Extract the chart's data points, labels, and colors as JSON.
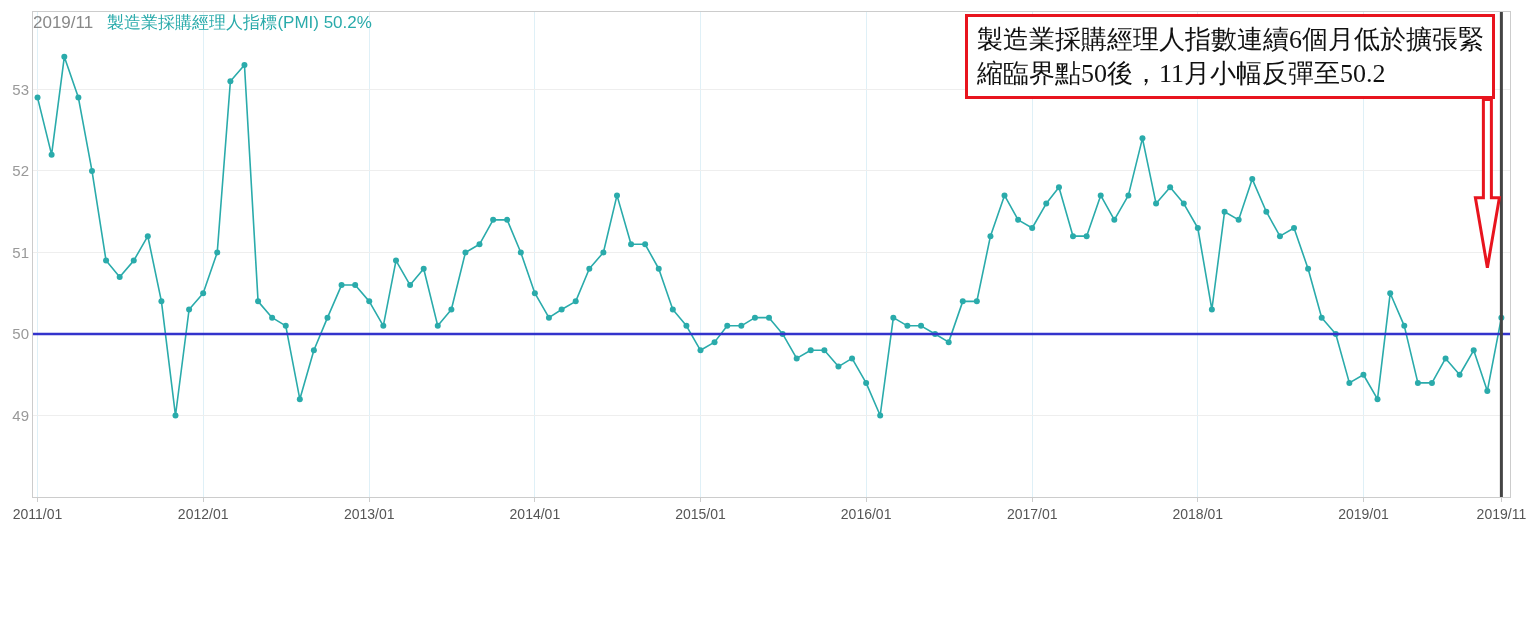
{
  "chart_data": {
    "type": "line",
    "annotations": [
      "2019/11",
      "50.2%",
      "製造業採購經理人指數連續6個月低於擴張緊縮臨界點50後，11月小幅反彈至50.2"
    ],
    "x": [
      "2011-01",
      "2011-02",
      "2011-03",
      "2011-04",
      "2011-05",
      "2011-06",
      "2011-07",
      "2011-08",
      "2011-09",
      "2011-10",
      "2011-11",
      "2011-12",
      "2012-01",
      "2012-02",
      "2012-03",
      "2012-04",
      "2012-05",
      "2012-06",
      "2012-07",
      "2012-08",
      "2012-09",
      "2012-10",
      "2012-11",
      "2012-12",
      "2013-01",
      "2013-02",
      "2013-03",
      "2013-04",
      "2013-05",
      "2013-06",
      "2013-07",
      "2013-08",
      "2013-09",
      "2013-10",
      "2013-11",
      "2013-12",
      "2014-01",
      "2014-02",
      "2014-03",
      "2014-04",
      "2014-05",
      "2014-06",
      "2014-07",
      "2014-08",
      "2014-09",
      "2014-10",
      "2014-11",
      "2014-12",
      "2015-01",
      "2015-02",
      "2015-03",
      "2015-04",
      "2015-05",
      "2015-06",
      "2015-07",
      "2015-08",
      "2015-09",
      "2015-10",
      "2015-11",
      "2015-12",
      "2016-01",
      "2016-02",
      "2016-03",
      "2016-04",
      "2016-05",
      "2016-06",
      "2016-07",
      "2016-08",
      "2016-09",
      "2016-10",
      "2016-11",
      "2016-12",
      "2017-01",
      "2017-02",
      "2017-03",
      "2017-04",
      "2017-05",
      "2017-06",
      "2017-07",
      "2017-08",
      "2017-09",
      "2017-10",
      "2017-11",
      "2017-12",
      "2018-01",
      "2018-02",
      "2018-03",
      "2018-04",
      "2018-05",
      "2018-06",
      "2018-07",
      "2018-08",
      "2018-09",
      "2018-10",
      "2018-11",
      "2018-12",
      "2019-01",
      "2019-02",
      "2019-03",
      "2019-04",
      "2019-05",
      "2019-06",
      "2019-07",
      "2019-08",
      "2019-09",
      "2019-10",
      "2019-11"
    ],
    "series": [
      {
        "name": "製造業採購經理人指標(PMI)",
        "color": "#2aabab",
        "values": [
          52.9,
          52.2,
          53.4,
          52.9,
          52.0,
          50.9,
          50.7,
          50.9,
          51.2,
          50.4,
          49.0,
          50.3,
          50.5,
          51.0,
          53.1,
          53.3,
          50.4,
          50.2,
          50.1,
          49.2,
          49.8,
          50.2,
          50.6,
          50.6,
          50.4,
          50.1,
          50.9,
          50.6,
          50.8,
          50.1,
          50.3,
          51.0,
          51.1,
          51.4,
          51.4,
          51.0,
          50.5,
          50.2,
          50.3,
          50.4,
          50.8,
          51.0,
          51.7,
          51.1,
          51.1,
          50.8,
          50.3,
          50.1,
          49.8,
          49.9,
          50.1,
          50.1,
          50.2,
          50.2,
          50.0,
          49.7,
          49.8,
          49.8,
          49.6,
          49.7,
          49.4,
          49.0,
          50.2,
          50.1,
          50.1,
          50.0,
          49.9,
          50.4,
          50.4,
          51.2,
          51.7,
          51.4,
          51.3,
          51.6,
          51.8,
          51.2,
          51.2,
          51.7,
          51.4,
          51.7,
          52.4,
          51.6,
          51.8,
          51.6,
          51.3,
          50.3,
          51.5,
          51.4,
          51.9,
          51.5,
          51.2,
          51.3,
          50.8,
          50.2,
          50.0,
          49.4,
          49.5,
          49.2,
          50.5,
          50.1,
          49.4,
          49.4,
          49.7,
          49.5,
          49.8,
          49.3,
          50.2
        ]
      }
    ],
    "xlim": [
      "2010-12-22",
      "2019-11-20"
    ],
    "xticks": [
      {
        "value": "2011-01",
        "label": "2011/01"
      },
      {
        "value": "2012-01",
        "label": "2012/01"
      },
      {
        "value": "2013-01",
        "label": "2013/01"
      },
      {
        "value": "2014-01",
        "label": "2014/01"
      },
      {
        "value": "2015-01",
        "label": "2015/01"
      },
      {
        "value": "2016-01",
        "label": "2016/01"
      },
      {
        "value": "2017-01",
        "label": "2017/01"
      },
      {
        "value": "2018-01",
        "label": "2018/01"
      },
      {
        "value": "2019-01",
        "label": "2019/01"
      },
      {
        "value": "2019-11",
        "label": "2019/11"
      }
    ],
    "ylim": [
      48,
      53.95
    ],
    "yticks": [
      49,
      50,
      51,
      52,
      53
    ],
    "ref_lines": [
      {
        "axis": "y",
        "value": 50,
        "color": "#3333cc"
      },
      {
        "axis": "x",
        "value": "2019-11",
        "color": "#444444"
      }
    ],
    "grid": true,
    "marker": "circle",
    "line_style": "solid"
  }
}
